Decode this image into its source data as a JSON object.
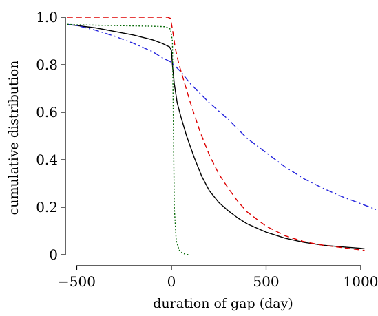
{
  "chart_data": {
    "type": "line",
    "title": "",
    "xlabel": "duration of gap (day)",
    "ylabel": "cumulative distribution",
    "xlim": [
      -550,
      1080
    ],
    "ylim": [
      -0.03,
      1.05
    ],
    "grid": false,
    "x_ticks": [
      -500,
      0,
      500,
      1000
    ],
    "x_tick_labels": [
      "−500",
      "0",
      "500",
      "1000"
    ],
    "y_ticks": [
      0,
      0.2,
      0.4,
      0.6,
      0.8,
      1.0
    ],
    "y_tick_labels": [
      "0",
      "0.2",
      "0.4",
      "0.6",
      "0.8",
      "1.0"
    ],
    "series": [
      {
        "color": "#000000",
        "style": "solid",
        "points": [
          [
            -550,
            0.97
          ],
          [
            -500,
            0.965
          ],
          [
            -400,
            0.955
          ],
          [
            -300,
            0.94
          ],
          [
            -200,
            0.925
          ],
          [
            -100,
            0.905
          ],
          [
            -50,
            0.89
          ],
          [
            -10,
            0.875
          ],
          [
            0,
            0.86
          ],
          [
            5,
            0.8
          ],
          [
            15,
            0.72
          ],
          [
            30,
            0.64
          ],
          [
            50,
            0.58
          ],
          [
            80,
            0.5
          ],
          [
            120,
            0.41
          ],
          [
            160,
            0.33
          ],
          [
            200,
            0.27
          ],
          [
            250,
            0.22
          ],
          [
            300,
            0.185
          ],
          [
            350,
            0.155
          ],
          [
            400,
            0.13
          ],
          [
            500,
            0.095
          ],
          [
            600,
            0.07
          ],
          [
            700,
            0.052
          ],
          [
            800,
            0.04
          ],
          [
            900,
            0.033
          ],
          [
            1000,
            0.027
          ],
          [
            1020,
            0.025
          ]
        ]
      },
      {
        "color": "#dd0000",
        "style": "dashed",
        "points": [
          [
            -550,
            1.0
          ],
          [
            -100,
            1.0
          ],
          [
            -20,
            1.0
          ],
          [
            -5,
            0.995
          ],
          [
            5,
            0.95
          ],
          [
            20,
            0.87
          ],
          [
            40,
            0.8
          ],
          [
            70,
            0.72
          ],
          [
            100,
            0.64
          ],
          [
            150,
            0.52
          ],
          [
            200,
            0.42
          ],
          [
            250,
            0.34
          ],
          [
            300,
            0.28
          ],
          [
            350,
            0.225
          ],
          [
            400,
            0.18
          ],
          [
            500,
            0.12
          ],
          [
            600,
            0.08
          ],
          [
            700,
            0.055
          ],
          [
            800,
            0.04
          ],
          [
            900,
            0.03
          ],
          [
            1000,
            0.02
          ],
          [
            1020,
            0.018
          ]
        ]
      },
      {
        "color": "#2222dd",
        "style": "dashdot",
        "points": [
          [
            -550,
            0.97
          ],
          [
            -500,
            0.965
          ],
          [
            -400,
            0.945
          ],
          [
            -300,
            0.92
          ],
          [
            -200,
            0.89
          ],
          [
            -100,
            0.855
          ],
          [
            -50,
            0.83
          ],
          [
            0,
            0.81
          ],
          [
            50,
            0.77
          ],
          [
            100,
            0.72
          ],
          [
            200,
            0.64
          ],
          [
            300,
            0.57
          ],
          [
            400,
            0.49
          ],
          [
            500,
            0.43
          ],
          [
            600,
            0.37
          ],
          [
            700,
            0.32
          ],
          [
            800,
            0.28
          ],
          [
            900,
            0.245
          ],
          [
            1000,
            0.215
          ],
          [
            1080,
            0.19
          ]
        ]
      },
      {
        "color": "#006600",
        "style": "dotted",
        "points": [
          [
            -550,
            0.97
          ],
          [
            -500,
            0.968
          ],
          [
            -300,
            0.965
          ],
          [
            -100,
            0.962
          ],
          [
            -30,
            0.96
          ],
          [
            -5,
            0.95
          ],
          [
            5,
            0.9
          ],
          [
            10,
            0.55
          ],
          [
            15,
            0.2
          ],
          [
            25,
            0.06
          ],
          [
            40,
            0.02
          ],
          [
            60,
            0.005
          ],
          [
            90,
            0.0
          ]
        ]
      }
    ]
  }
}
